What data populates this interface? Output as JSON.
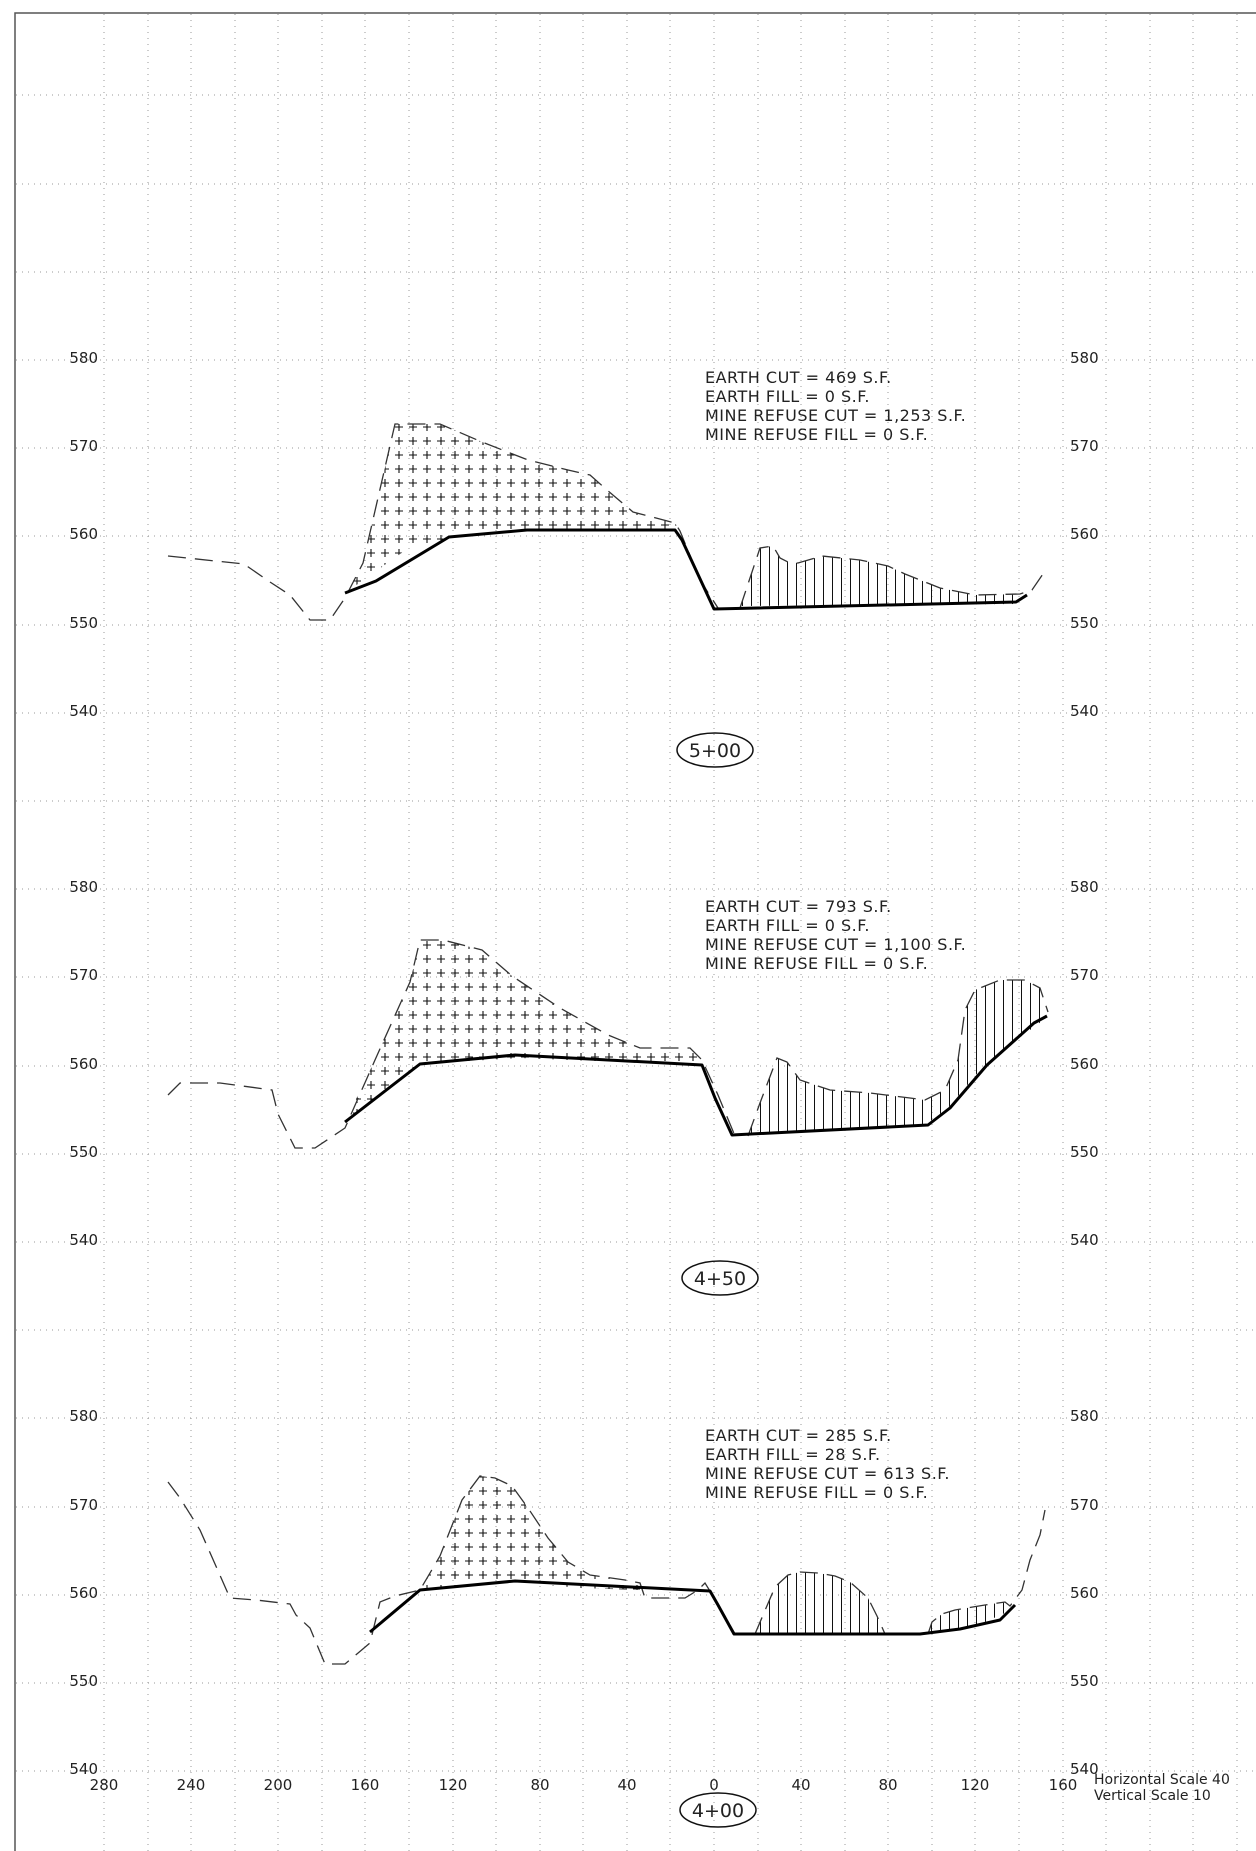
{
  "sheet": {
    "x_axis_ticks": [
      "280",
      "240",
      "200",
      "160",
      "120",
      "80",
      "40",
      "0",
      "40",
      "80",
      "120",
      "160"
    ],
    "elevation_ticks": [
      "580",
      "570",
      "560",
      "550",
      "540"
    ],
    "horizontal_scale": "Horizontal Scale 40",
    "vertical_scale": "Vertical Scale 10"
  },
  "sections": [
    {
      "station": "5+00",
      "notes": [
        "EARTH CUT = 469 S.F.",
        "EARTH FILL = 0 S.F.",
        "MINE REFUSE CUT = 1,253 S.F.",
        "MINE REFUSE FILL = 0 S.F."
      ]
    },
    {
      "station": "4+50",
      "notes": [
        "EARTH CUT = 793 S.F.",
        "EARTH FILL = 0 S.F.",
        "MINE REFUSE CUT = 1,100 S.F.",
        "MINE REFUSE FILL = 0 S.F."
      ]
    },
    {
      "station": "4+00",
      "notes": [
        "EARTH CUT = 285 S.F.",
        "EARTH FILL = 28 S.F.",
        "MINE REFUSE CUT = 613 S.F.",
        "MINE REFUSE FILL = 0 S.F."
      ]
    }
  ],
  "colors": {
    "line": "#000000",
    "grid": "#9a9a9a"
  }
}
